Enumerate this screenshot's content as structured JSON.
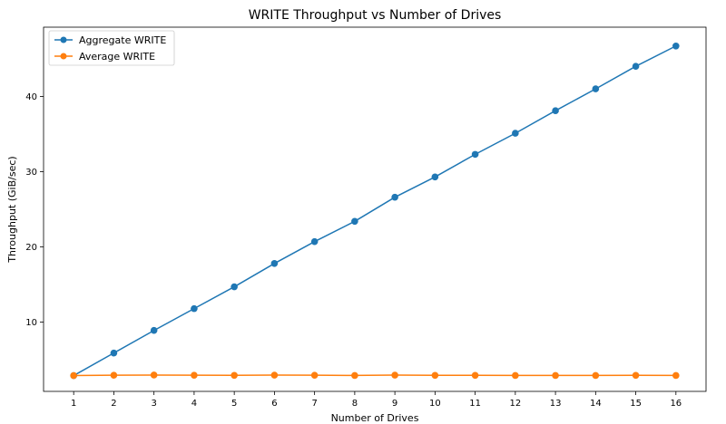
{
  "chart_data": {
    "type": "line",
    "title": "WRITE Throughput vs Number of Drives",
    "xlabel": "Number of Drives",
    "ylabel": "Throughput (GiB/sec)",
    "x": [
      1,
      2,
      3,
      4,
      5,
      6,
      7,
      8,
      9,
      10,
      11,
      12,
      13,
      14,
      15,
      16
    ],
    "xlim": [
      0.25,
      16.75
    ],
    "ylim": [
      0.8,
      49.2
    ],
    "yticks": [
      10,
      20,
      30,
      40
    ],
    "grid": false,
    "legend_position": "top-left",
    "series": [
      {
        "name": "Aggregate WRITE",
        "color": "#1f77b4",
        "values": [
          2.9,
          5.9,
          8.9,
          11.8,
          14.7,
          17.8,
          20.7,
          23.4,
          26.6,
          29.3,
          32.3,
          35.1,
          38.1,
          41.0,
          44.0,
          46.7
        ]
      },
      {
        "name": "Average WRITE",
        "color": "#ff7f0e",
        "values": [
          2.9,
          2.95,
          2.97,
          2.95,
          2.93,
          2.96,
          2.95,
          2.92,
          2.96,
          2.93,
          2.93,
          2.92,
          2.92,
          2.92,
          2.93,
          2.92
        ]
      }
    ]
  }
}
